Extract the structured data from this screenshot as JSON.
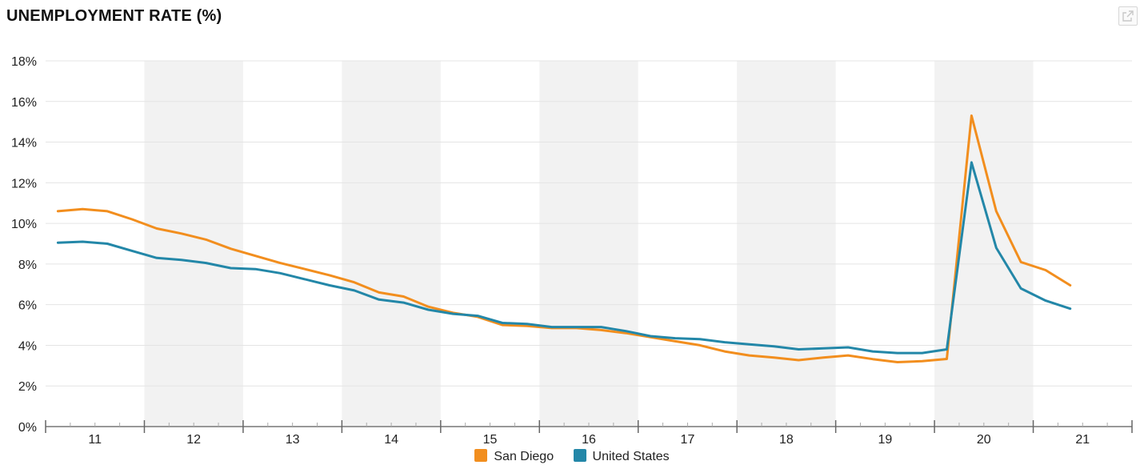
{
  "header": {
    "title": "UNEMPLOYMENT RATE (%)",
    "expand_icon": "expand-icon"
  },
  "chart_data": {
    "type": "line",
    "title": "UNEMPLOYMENT RATE (%)",
    "xlabel": "",
    "ylabel": "",
    "x_unit": "year (two-digit)",
    "xlim": [
      10.5,
      21.5
    ],
    "ylim": [
      0,
      18
    ],
    "y_ticks": [
      0,
      2,
      4,
      6,
      8,
      10,
      12,
      14,
      16,
      18
    ],
    "y_tick_labels": [
      "0%",
      "2%",
      "4%",
      "6%",
      "8%",
      "10%",
      "12%",
      "14%",
      "16%",
      "18%"
    ],
    "x_ticks": [
      11,
      12,
      13,
      14,
      15,
      16,
      17,
      18,
      19,
      20,
      21
    ],
    "x_tick_labels": [
      "11",
      "12",
      "13",
      "14",
      "15",
      "16",
      "17",
      "18",
      "19",
      "20",
      "21"
    ],
    "shaded_bands": [
      [
        11.5,
        12.5
      ],
      [
        13.5,
        14.5
      ],
      [
        15.5,
        16.5
      ],
      [
        17.5,
        18.5
      ],
      [
        19.5,
        20.5
      ]
    ],
    "grid": true,
    "legend_position": "bottom-center",
    "series": [
      {
        "name": "San Diego",
        "color": "#f28e1e",
        "x": [
          10.625,
          10.875,
          11.125,
          11.375,
          11.625,
          11.875,
          12.125,
          12.375,
          12.625,
          12.875,
          13.125,
          13.375,
          13.625,
          13.875,
          14.125,
          14.375,
          14.625,
          14.875,
          15.125,
          15.375,
          15.625,
          15.875,
          16.125,
          16.375,
          16.625,
          16.875,
          17.125,
          17.375,
          17.625,
          17.875,
          18.125,
          18.375,
          18.625,
          18.875,
          19.125,
          19.375,
          19.625,
          19.875,
          20.125,
          20.375,
          20.625,
          20.875
        ],
        "y": [
          10.6,
          10.7,
          10.6,
          10.2,
          9.75,
          9.5,
          9.2,
          8.75,
          8.4,
          8.05,
          7.75,
          7.45,
          7.1,
          6.6,
          6.4,
          5.9,
          5.6,
          5.4,
          5.0,
          4.95,
          4.85,
          4.85,
          4.75,
          4.6,
          4.4,
          4.2,
          4.0,
          3.7,
          3.5,
          3.4,
          3.27,
          3.4,
          3.5,
          3.32,
          3.17,
          3.22,
          3.33,
          15.3,
          10.6,
          8.1,
          7.7,
          6.95
        ]
      },
      {
        "name": "United States",
        "color": "#2387a8",
        "x": [
          10.625,
          10.875,
          11.125,
          11.375,
          11.625,
          11.875,
          12.125,
          12.375,
          12.625,
          12.875,
          13.125,
          13.375,
          13.625,
          13.875,
          14.125,
          14.375,
          14.625,
          14.875,
          15.125,
          15.375,
          15.625,
          15.875,
          16.125,
          16.375,
          16.625,
          16.875,
          17.125,
          17.375,
          17.625,
          17.875,
          18.125,
          18.375,
          18.625,
          18.875,
          19.125,
          19.375,
          19.625,
          19.875,
          20.125,
          20.375,
          20.625,
          20.875
        ],
        "y": [
          9.05,
          9.1,
          9.0,
          8.65,
          8.3,
          8.2,
          8.05,
          7.8,
          7.75,
          7.55,
          7.25,
          6.95,
          6.7,
          6.25,
          6.1,
          5.75,
          5.55,
          5.45,
          5.1,
          5.05,
          4.9,
          4.9,
          4.9,
          4.7,
          4.45,
          4.35,
          4.3,
          4.15,
          4.05,
          3.95,
          3.8,
          3.85,
          3.9,
          3.7,
          3.62,
          3.62,
          3.8,
          13.0,
          8.8,
          6.8,
          6.2,
          5.8
        ]
      }
    ]
  }
}
